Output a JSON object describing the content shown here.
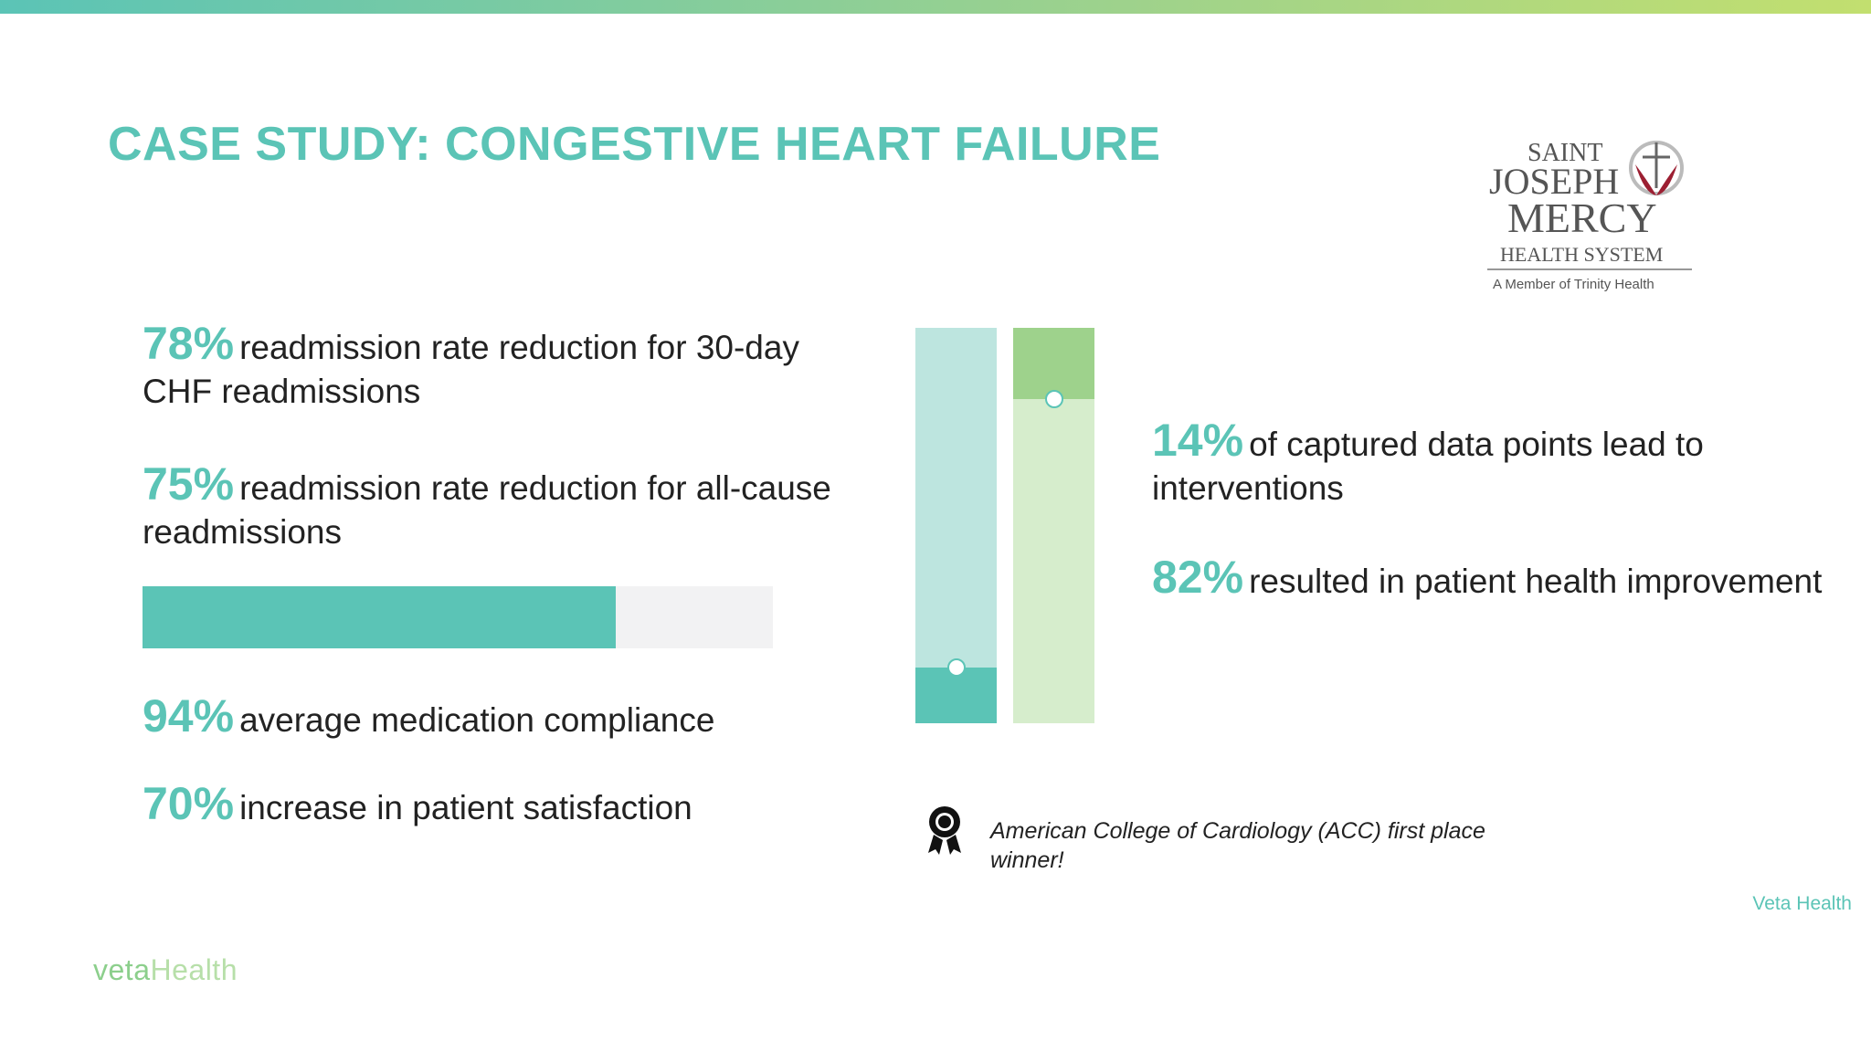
{
  "slide": {
    "title": "CASE STUDY: CONGESTIVE HEART FAILURE",
    "logo": {
      "line1": "SAINT",
      "line2": "JOSEPH",
      "line3": "MERCY",
      "line4": "HEALTH SYSTEM",
      "line5": "A Member of Trinity Health"
    },
    "left_stats": [
      {
        "pct": "78%",
        "text": "readmission rate reduction for 30-day CHF readmissions"
      },
      {
        "pct": "75%",
        "text": "readmission rate reduction for all-cause readmissions"
      },
      {
        "pct": "94%",
        "text": "average medication compliance"
      },
      {
        "pct": "70%",
        "text": "increase in patient satisfaction"
      }
    ],
    "progress": {
      "value": 0.75,
      "fill_color": "#5bc4b6",
      "track_color": "#f2f2f3"
    },
    "vertical_bars": [
      {
        "value": 0.14,
        "fill_color": "#5bc4b6",
        "track_color": "#bde5df"
      },
      {
        "value": 0.82,
        "fill_color": "#d6edcc",
        "track_color": "#9ed28c"
      }
    ],
    "right_stats": [
      {
        "pct": "14%",
        "text": "of captured data points lead to interventions"
      },
      {
        "pct": "82%",
        "text": "resulted in patient health improvement"
      }
    ],
    "award": {
      "icon": "award-ribbon-icon",
      "text": "American College of Cardiology (ACC) first place winner!"
    },
    "footer": {
      "brand": "Veta Health",
      "logo_part1": "veta",
      "logo_part2": "Health"
    }
  }
}
